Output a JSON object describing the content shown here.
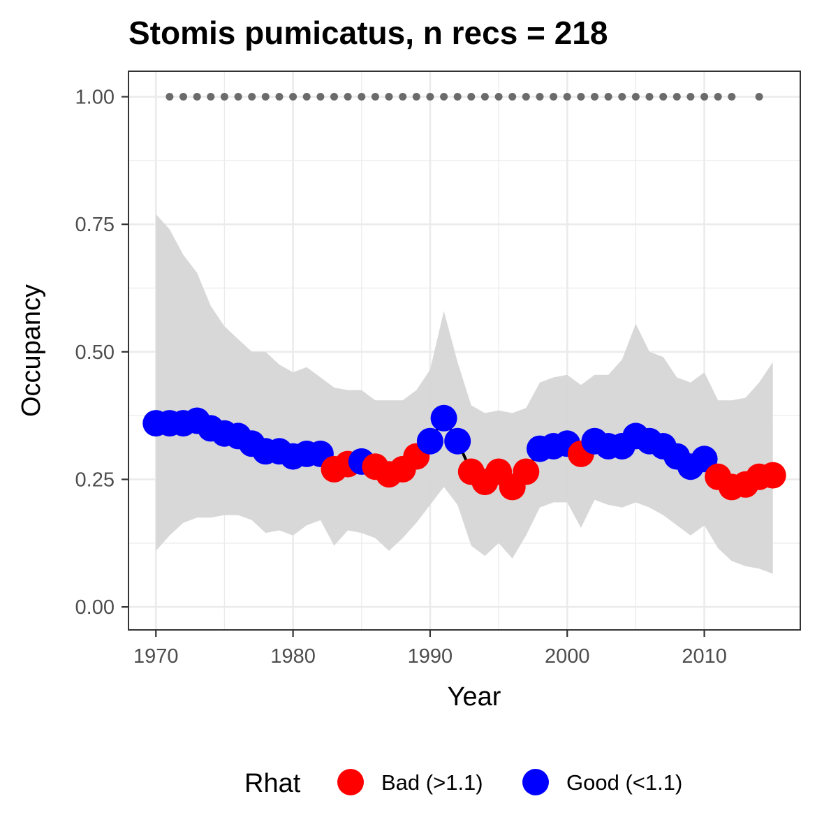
{
  "chart_data": {
    "type": "line",
    "title": "Stomis pumicatus, n recs = 218",
    "xlabel": "Year",
    "ylabel": "Occupancy",
    "xlim": [
      1968,
      2017
    ],
    "ylim": [
      -0.045,
      1.05
    ],
    "x_ticks": [
      1970,
      1980,
      1990,
      2000,
      2010
    ],
    "x_tick_labels": [
      "1970",
      "1980",
      "1990",
      "2000",
      "2010"
    ],
    "y_ticks": [
      0,
      0.25,
      0.5,
      0.75,
      1.0
    ],
    "y_tick_labels": [
      "0.00",
      "0.25",
      "0.50",
      "0.75",
      "1.00"
    ],
    "grid": true,
    "legend": {
      "title": "Rhat",
      "position": "bottom",
      "entries": [
        {
          "label": "Bad (>1.1)",
          "color": "#ff0000"
        },
        {
          "label": "Good (<1.1)",
          "color": "#0000ff"
        }
      ]
    },
    "colors": {
      "bad": "#ff0000",
      "good": "#0000ff",
      "ribbon": "#d6d6d6",
      "line": "#000000",
      "record_dots": "#6b6b6b"
    },
    "years": [
      1970,
      1971,
      1972,
      1973,
      1974,
      1975,
      1976,
      1977,
      1978,
      1979,
      1980,
      1981,
      1982,
      1983,
      1984,
      1985,
      1986,
      1987,
      1988,
      1989,
      1990,
      1991,
      1992,
      1993,
      1994,
      1995,
      1996,
      1997,
      1998,
      1999,
      2000,
      2001,
      2002,
      2003,
      2004,
      2005,
      2006,
      2007,
      2008,
      2009,
      2010,
      2011,
      2012,
      2013,
      2014,
      2015
    ],
    "occupancy": [
      0.36,
      0.36,
      0.36,
      0.365,
      0.35,
      0.34,
      0.335,
      0.32,
      0.305,
      0.305,
      0.295,
      0.3,
      0.3,
      0.27,
      0.28,
      0.285,
      0.275,
      0.26,
      0.27,
      0.295,
      0.325,
      0.37,
      0.325,
      0.265,
      0.245,
      0.265,
      0.235,
      0.265,
      0.31,
      0.315,
      0.32,
      0.3,
      0.325,
      0.315,
      0.315,
      0.335,
      0.325,
      0.315,
      0.295,
      0.275,
      0.29,
      0.255,
      0.235,
      0.24,
      0.255,
      0.258
    ],
    "rhat_status": [
      "good",
      "good",
      "good",
      "good",
      "good",
      "good",
      "good",
      "good",
      "good",
      "good",
      "good",
      "good",
      "good",
      "bad",
      "bad",
      "good",
      "bad",
      "bad",
      "bad",
      "bad",
      "good",
      "good",
      "good",
      "bad",
      "bad",
      "bad",
      "bad",
      "bad",
      "good",
      "good",
      "good",
      "bad",
      "good",
      "good",
      "good",
      "good",
      "good",
      "good",
      "good",
      "good",
      "good",
      "bad",
      "bad",
      "bad",
      "bad",
      "bad"
    ],
    "upper_ci": [
      0.77,
      0.74,
      0.69,
      0.655,
      0.59,
      0.55,
      0.525,
      0.5,
      0.5,
      0.475,
      0.46,
      0.47,
      0.45,
      0.43,
      0.425,
      0.425,
      0.405,
      0.405,
      0.405,
      0.425,
      0.465,
      0.58,
      0.48,
      0.395,
      0.38,
      0.385,
      0.38,
      0.39,
      0.44,
      0.45,
      0.455,
      0.435,
      0.455,
      0.455,
      0.485,
      0.555,
      0.5,
      0.49,
      0.45,
      0.44,
      0.46,
      0.405,
      0.405,
      0.41,
      0.44,
      0.48
    ],
    "lower_ci": [
      0.11,
      0.14,
      0.165,
      0.175,
      0.175,
      0.18,
      0.18,
      0.17,
      0.145,
      0.15,
      0.14,
      0.16,
      0.17,
      0.12,
      0.15,
      0.145,
      0.135,
      0.11,
      0.135,
      0.165,
      0.2,
      0.235,
      0.2,
      0.12,
      0.1,
      0.125,
      0.095,
      0.14,
      0.195,
      0.205,
      0.205,
      0.155,
      0.21,
      0.2,
      0.195,
      0.205,
      0.195,
      0.18,
      0.16,
      0.14,
      0.16,
      0.115,
      0.09,
      0.08,
      0.075,
      0.065
    ],
    "record_years": [
      1971,
      1972,
      1973,
      1974,
      1975,
      1976,
      1977,
      1978,
      1979,
      1980,
      1981,
      1982,
      1983,
      1984,
      1985,
      1986,
      1987,
      1988,
      1989,
      1990,
      1991,
      1992,
      1993,
      1994,
      1995,
      1996,
      1997,
      1998,
      1999,
      2000,
      2001,
      2002,
      2003,
      2004,
      2005,
      2006,
      2007,
      2008,
      2009,
      2010,
      2011,
      2012,
      2014
    ],
    "record_value": 1.0
  }
}
